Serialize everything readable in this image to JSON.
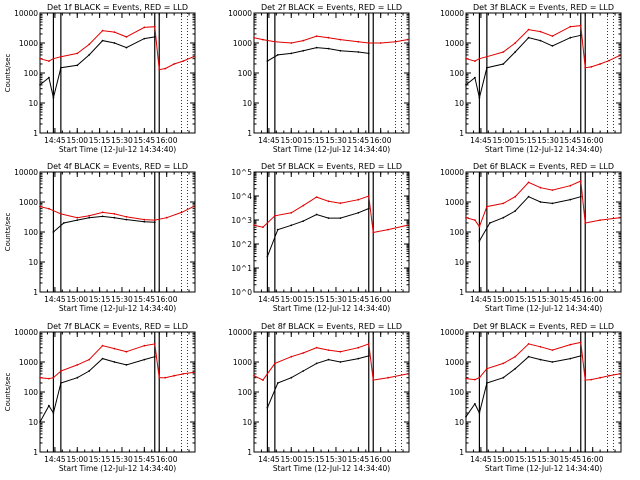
{
  "colors": {
    "events": "#000000",
    "lld": "#e00000",
    "axes": "#000000"
  },
  "chart_data": [
    {
      "type": "line",
      "title": "Det 1f BLACK = Events, RED = LLD",
      "xlabel": "Start Time (12-Jul-12 14:34:40)",
      "ylabel": "Counts/sec",
      "x_ticks": [
        "14:45",
        "15:00",
        "15:15",
        "15:30",
        "15:45",
        "16:00"
      ],
      "y_ticks": [
        "1",
        "10",
        "100",
        "1000",
        "10000"
      ],
      "ylim": [
        1,
        10000
      ],
      "ylog": true,
      "series": [
        {
          "name": "Events",
          "x": [
            "14:35",
            "14:41",
            "14:44",
            "14:49",
            "15:00",
            "15:08",
            "15:17",
            "15:25",
            "15:33",
            "15:45",
            "15:52"
          ],
          "values": [
            40,
            70,
            15,
            150,
            180,
            400,
            1200,
            1000,
            700,
            1400,
            1600
          ]
        },
        {
          "name": "LLD",
          "x": [
            "14:35",
            "14:41",
            "14:44",
            "14:49",
            "15:00",
            "15:08",
            "15:17",
            "15:25",
            "15:33",
            "15:45",
            "15:52",
            "15:55",
            "15:59",
            "16:05",
            "16:11",
            "16:18"
          ],
          "values": [
            300,
            250,
            300,
            350,
            450,
            900,
            2600,
            2300,
            1600,
            3300,
            3500,
            130,
            140,
            200,
            250,
            350
          ]
        }
      ]
    },
    {
      "type": "line",
      "title": "Det 2f BLACK = Events, RED = LLD",
      "xlabel": "Start Time (12-Jul-12 14:34:40)",
      "ylabel": "",
      "x_ticks": [
        "14:45",
        "15:00",
        "15:15",
        "15:30",
        "15:45",
        "16:00"
      ],
      "y_ticks": [
        "1",
        "10",
        "100",
        "1000",
        "10000"
      ],
      "ylim": [
        1,
        10000
      ],
      "ylog": true,
      "series": [
        {
          "name": "Events",
          "x": [
            "14:44",
            "14:51",
            "15:00",
            "15:08",
            "15:17",
            "15:25",
            "15:33",
            "15:45",
            "15:52"
          ],
          "values": [
            250,
            400,
            450,
            550,
            700,
            650,
            550,
            500,
            450
          ]
        },
        {
          "name": "LLD",
          "x": [
            "14:35",
            "14:41",
            "14:49",
            "15:00",
            "15:08",
            "15:17",
            "15:25",
            "15:33",
            "15:45",
            "15:52",
            "16:00",
            "16:10",
            "16:18"
          ],
          "values": [
            1500,
            1300,
            1100,
            1000,
            1200,
            1700,
            1500,
            1300,
            1100,
            1000,
            1000,
            1100,
            1300
          ]
        }
      ]
    },
    {
      "type": "line",
      "title": "Det 3f BLACK = Events, RED = LLD",
      "xlabel": "Start Time (12-Jul-12 14:34:40)",
      "ylabel": "",
      "x_ticks": [
        "14:45",
        "15:00",
        "15:15",
        "15:30",
        "15:45",
        "16:00"
      ],
      "y_ticks": [
        "1",
        "10",
        "100",
        "1000",
        "10000"
      ],
      "ylim": [
        1,
        10000
      ],
      "ylog": true,
      "series": [
        {
          "name": "Events",
          "x": [
            "14:35",
            "14:41",
            "14:44",
            "14:49",
            "15:00",
            "15:08",
            "15:17",
            "15:25",
            "15:33",
            "15:45",
            "15:52"
          ],
          "values": [
            40,
            70,
            15,
            150,
            200,
            500,
            1500,
            1200,
            800,
            1500,
            1800
          ]
        },
        {
          "name": "LLD",
          "x": [
            "14:35",
            "14:41",
            "14:44",
            "14:49",
            "15:00",
            "15:08",
            "15:17",
            "15:25",
            "15:33",
            "15:45",
            "15:52",
            "15:55",
            "15:59",
            "16:05",
            "16:11",
            "16:18"
          ],
          "values": [
            300,
            250,
            300,
            350,
            500,
            1000,
            2800,
            2400,
            1700,
            3500,
            3800,
            150,
            160,
            200,
            260,
            380
          ]
        }
      ]
    },
    {
      "type": "line",
      "title": "Det 4f BLACK = Events, RED = LLD",
      "xlabel": "Start Time (12-Jul-12 14:34:40)",
      "ylabel": "Counts/sec",
      "x_ticks": [
        "14:45",
        "15:00",
        "15:15",
        "15:30",
        "15:45",
        "16:00"
      ],
      "y_ticks": [
        "1",
        "10",
        "100",
        "1000",
        "10000"
      ],
      "ylim": [
        1,
        10000
      ],
      "ylog": true,
      "series": [
        {
          "name": "Events",
          "x": [
            "14:44",
            "14:51",
            "15:00",
            "15:08",
            "15:17",
            "15:25",
            "15:33",
            "15:45",
            "15:52"
          ],
          "values": [
            100,
            200,
            250,
            300,
            330,
            300,
            260,
            220,
            210
          ]
        },
        {
          "name": "LLD",
          "x": [
            "14:35",
            "14:41",
            "14:49",
            "15:00",
            "15:08",
            "15:17",
            "15:25",
            "15:33",
            "15:45",
            "15:52",
            "16:00",
            "16:10",
            "16:18"
          ],
          "values": [
            700,
            600,
            400,
            300,
            350,
            450,
            400,
            320,
            260,
            250,
            300,
            450,
            700
          ]
        }
      ]
    },
    {
      "type": "line",
      "title": "Det 5f BLACK = Events, RED = LLD",
      "xlabel": "Start Time (12-Jul-12 14:34:40)",
      "ylabel": "",
      "x_ticks": [
        "14:45",
        "15:00",
        "15:15",
        "15:30",
        "15:45",
        "16:00"
      ],
      "y_ticks": [
        "10^0",
        "10^1",
        "10^2",
        "10^3",
        "10^4",
        "10^5"
      ],
      "ylim": [
        1,
        100000
      ],
      "ylog": true,
      "series": [
        {
          "name": "Events",
          "x": [
            "14:44",
            "14:51",
            "15:00",
            "15:08",
            "15:17",
            "15:25",
            "15:33",
            "15:45",
            "15:52"
          ],
          "values": [
            30,
            400,
            600,
            900,
            1700,
            1200,
            1200,
            2000,
            3000
          ]
        },
        {
          "name": "LLD",
          "x": [
            "14:35",
            "14:41",
            "14:49",
            "15:00",
            "15:08",
            "15:17",
            "15:25",
            "15:33",
            "15:45",
            "15:52",
            "15:55",
            "16:05",
            "16:18"
          ],
          "values": [
            600,
            500,
            1500,
            2000,
            4000,
            9000,
            6000,
            5000,
            7000,
            10000,
            300,
            400,
            600
          ]
        }
      ]
    },
    {
      "type": "line",
      "title": "Det 6f BLACK = Events, RED = LLD",
      "xlabel": "Start Time (12-Jul-12 14:34:40)",
      "ylabel": "",
      "x_ticks": [
        "14:45",
        "15:00",
        "15:15",
        "15:30",
        "15:45",
        "16:00"
      ],
      "y_ticks": [
        "1",
        "10",
        "100",
        "1000",
        "10000"
      ],
      "ylim": [
        1,
        10000
      ],
      "ylog": true,
      "series": [
        {
          "name": "Events",
          "x": [
            "14:44",
            "14:51",
            "15:00",
            "15:08",
            "15:17",
            "15:25",
            "15:33",
            "15:45",
            "15:52"
          ],
          "values": [
            50,
            200,
            300,
            500,
            1500,
            1000,
            900,
            1200,
            1500
          ]
        },
        {
          "name": "LLD",
          "x": [
            "14:35",
            "14:41",
            "14:44",
            "14:49",
            "15:00",
            "15:08",
            "15:17",
            "15:25",
            "15:33",
            "15:45",
            "15:52",
            "15:55",
            "16:05",
            "16:18"
          ],
          "values": [
            300,
            250,
            150,
            700,
            900,
            1500,
            4500,
            3000,
            2500,
            3500,
            5000,
            200,
            250,
            300
          ]
        }
      ]
    },
    {
      "type": "line",
      "title": "Det 7f BLACK = Events, RED = LLD",
      "xlabel": "Start Time (12-Jul-12 14:34:40)",
      "ylabel": "Counts/sec",
      "x_ticks": [
        "14:45",
        "15:00",
        "15:15",
        "15:30",
        "15:45",
        "16:00"
      ],
      "y_ticks": [
        "1",
        "10",
        "100",
        "1000",
        "10000"
      ],
      "ylim": [
        1,
        10000
      ],
      "ylog": true,
      "series": [
        {
          "name": "Events",
          "x": [
            "14:35",
            "14:41",
            "14:44",
            "14:49",
            "15:00",
            "15:08",
            "15:17",
            "15:25",
            "15:33",
            "15:45",
            "15:52"
          ],
          "values": [
            10,
            35,
            20,
            200,
            300,
            500,
            1300,
            1000,
            800,
            1200,
            1500
          ]
        },
        {
          "name": "LLD",
          "x": [
            "14:35",
            "14:41",
            "14:44",
            "14:49",
            "15:00",
            "15:08",
            "15:17",
            "15:25",
            "15:33",
            "15:45",
            "15:52",
            "15:55",
            "15:59",
            "16:05",
            "16:11",
            "16:18"
          ],
          "values": [
            300,
            280,
            300,
            500,
            800,
            1200,
            3500,
            2800,
            2200,
            3500,
            4000,
            300,
            300,
            350,
            400,
            450
          ]
        }
      ]
    },
    {
      "type": "line",
      "title": "Det 8f BLACK = Events, RED = LLD",
      "xlabel": "Start Time (12-Jul-12 14:34:40)",
      "ylabel": "",
      "x_ticks": [
        "14:45",
        "15:00",
        "15:15",
        "15:30",
        "15:45",
        "16:00"
      ],
      "y_ticks": [
        "1",
        "10",
        "100",
        "1000",
        "10000"
      ],
      "ylim": [
        1,
        10000
      ],
      "ylog": true,
      "series": [
        {
          "name": "Events",
          "x": [
            "14:44",
            "14:51",
            "15:00",
            "15:08",
            "15:17",
            "15:25",
            "15:33",
            "15:45",
            "15:52"
          ],
          "values": [
            30,
            200,
            300,
            500,
            900,
            1200,
            1000,
            1300,
            1600
          ]
        },
        {
          "name": "LLD",
          "x": [
            "14:35",
            "14:41",
            "14:49",
            "15:00",
            "15:08",
            "15:17",
            "15:25",
            "15:33",
            "15:45",
            "15:52",
            "15:55",
            "16:05",
            "16:18"
          ],
          "values": [
            350,
            250,
            900,
            1500,
            2000,
            3000,
            2500,
            2200,
            3000,
            4000,
            250,
            300,
            400
          ]
        }
      ]
    },
    {
      "type": "line",
      "title": "Det 9f BLACK = Events, RED = LLD",
      "xlabel": "Start Time (12-Jul-12 14:34:40)",
      "ylabel": "",
      "x_ticks": [
        "14:45",
        "15:00",
        "15:15",
        "15:30",
        "15:45",
        "16:00"
      ],
      "y_ticks": [
        "1",
        "10",
        "100",
        "1000",
        "10000"
      ],
      "ylim": [
        1,
        10000
      ],
      "ylog": true,
      "series": [
        {
          "name": "Events",
          "x": [
            "14:35",
            "14:41",
            "14:44",
            "14:49",
            "15:00",
            "15:08",
            "15:17",
            "15:25",
            "15:33",
            "15:45",
            "15:52"
          ],
          "values": [
            15,
            40,
            20,
            200,
            300,
            600,
            1500,
            1200,
            1000,
            1300,
            1600
          ]
        },
        {
          "name": "LLD",
          "x": [
            "14:35",
            "14:41",
            "14:44",
            "14:49",
            "15:00",
            "15:08",
            "15:17",
            "15:25",
            "15:33",
            "15:45",
            "15:52",
            "15:55",
            "15:59",
            "16:05",
            "16:11",
            "16:18"
          ],
          "values": [
            280,
            260,
            300,
            600,
            900,
            1500,
            4000,
            3200,
            2500,
            3800,
            4500,
            250,
            260,
            300,
            350,
            400
          ]
        }
      ]
    }
  ]
}
